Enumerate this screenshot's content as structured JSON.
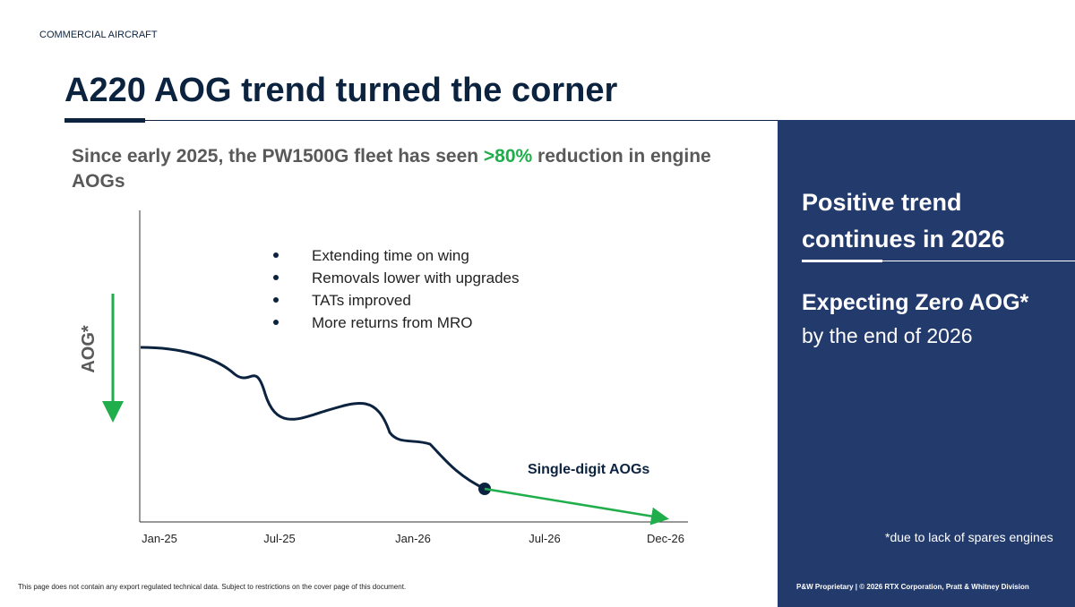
{
  "header": {
    "section": "COMMERCIAL AIRCRAFT",
    "title": "A220 AOG trend turned the corner"
  },
  "subtitle": {
    "before": "Since early 2025, the PW1500G fleet has seen ",
    "highlight": ">80%",
    "after": " reduction in engine AOGs"
  },
  "chart": {
    "y_label": "AOG*",
    "x_labels": [
      "Jan-25",
      "Jul-25",
      "Jan-26",
      "Jul-26",
      "Dec-26"
    ],
    "bullets": [
      "Extending time on wing",
      "Removals lower with upgrades",
      "TATs improved",
      "More returns from MRO"
    ],
    "annotation": "Single-digit AOGs"
  },
  "panel": {
    "heading": "Positive trend continues in 2026",
    "emphasis": "Expecting Zero AOG*",
    "detail": "by the end of 2026",
    "footnote": "*due to lack of spares engines"
  },
  "footer": {
    "disclaimer": "This page does not contain any export regulated technical data. Subject to restrictions on the cover page of this document.",
    "proprietary": "P&W Proprietary | © 2026 RTX Corporation, Pratt & Whitney Division"
  }
}
